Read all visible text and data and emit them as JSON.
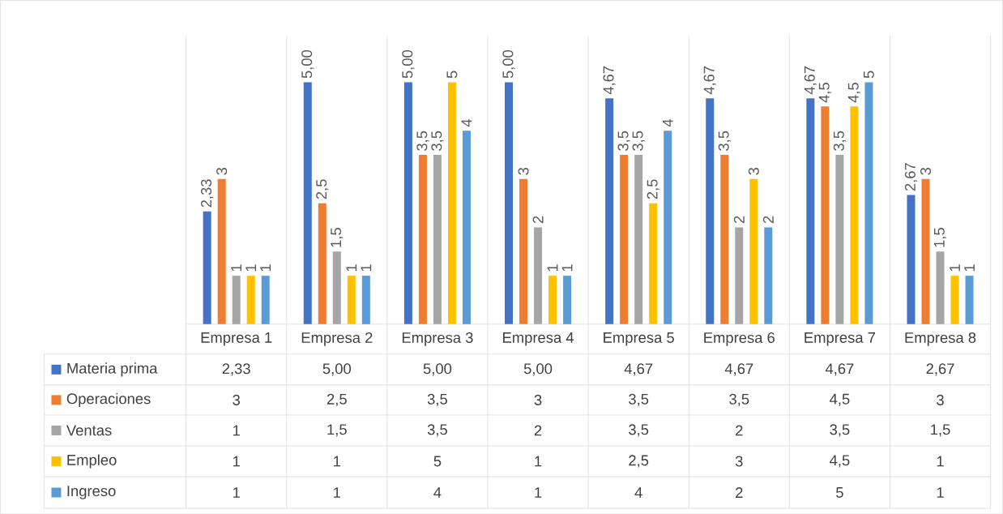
{
  "chart_data": {
    "type": "bar",
    "categories": [
      "Empresa 1",
      "Empresa 2",
      "Empresa 3",
      "Empresa 4",
      "Empresa 5",
      "Empresa 6",
      "Empresa 7",
      "Empresa 8"
    ],
    "series": [
      {
        "name": "Materia prima",
        "color": "#4472c4",
        "values": [
          2.33,
          5.0,
          5.0,
          5.0,
          4.67,
          4.67,
          4.67,
          2.67
        ],
        "value_labels": [
          "2,33",
          "5,00",
          "5,00",
          "5,00",
          "4,67",
          "4,67",
          "4,67",
          "2,67"
        ]
      },
      {
        "name": "Operaciones",
        "color": "#ed7d31",
        "values": [
          3,
          2.5,
          3.5,
          3,
          3.5,
          3.5,
          4.5,
          3
        ],
        "value_labels": [
          "3",
          "2,5",
          "3,5",
          "3",
          "3,5",
          "3,5",
          "4,5",
          "3"
        ]
      },
      {
        "name": "Ventas",
        "color": "#a5a5a5",
        "values": [
          1,
          1.5,
          3.5,
          2,
          3.5,
          2,
          3.5,
          1.5
        ],
        "value_labels": [
          "1",
          "1,5",
          "3,5",
          "2",
          "3,5",
          "2",
          "3,5",
          "1,5"
        ]
      },
      {
        "name": "Empleo",
        "color": "#ffc000",
        "values": [
          1,
          1,
          5,
          1,
          2.5,
          3,
          4.5,
          1
        ],
        "value_labels": [
          "1",
          "1",
          "5",
          "1",
          "2,5",
          "3",
          "4,5",
          "1"
        ]
      },
      {
        "name": "Ingreso",
        "color": "#5b9bd5",
        "values": [
          1,
          1,
          4,
          1,
          4,
          2,
          5,
          1
        ],
        "value_labels": [
          "1",
          "1",
          "4",
          "1",
          "4",
          "2",
          "5",
          "1"
        ]
      }
    ],
    "legend": "bottom"
  }
}
